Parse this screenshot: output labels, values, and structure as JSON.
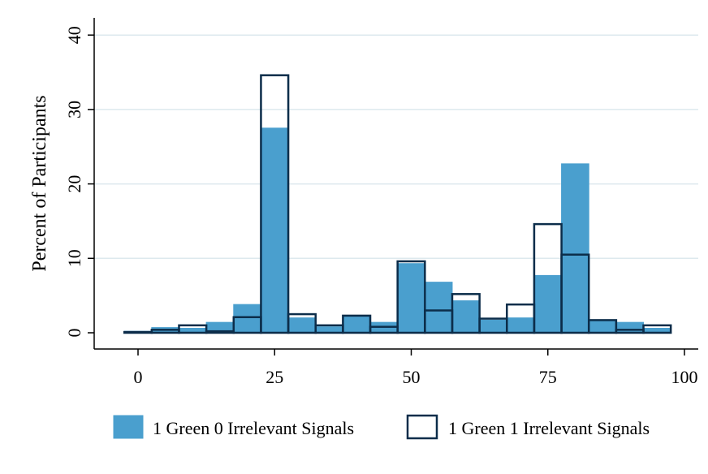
{
  "chart_data": {
    "type": "bar",
    "ylabel": "Percent of Participants",
    "xlabel": "",
    "title": "",
    "xlim": [
      -8,
      102
    ],
    "ylim": [
      0,
      40
    ],
    "x_ticks": [
      "0",
      "25",
      "50",
      "75",
      "100"
    ],
    "y_ticks": [
      "0",
      "10",
      "20",
      "30",
      "40"
    ],
    "grid": true,
    "legend_position": "bottom",
    "bin_width": 5,
    "colors": {
      "filled": "#4a9fce",
      "outline": "#0c2d4a",
      "grid": "#dde9ee"
    },
    "series": [
      {
        "name": "1 Green 0 Irrelevant Signals",
        "style": "filled",
        "bins": [
          {
            "x": 0,
            "value": 0.2
          },
          {
            "x": 5,
            "value": 0.7
          },
          {
            "x": 10,
            "value": 0.6
          },
          {
            "x": 15,
            "value": 1.4
          },
          {
            "x": 20,
            "value": 3.8
          },
          {
            "x": 25,
            "value": 27.5
          },
          {
            "x": 30,
            "value": 2.0
          },
          {
            "x": 35,
            "value": 0.8
          },
          {
            "x": 40,
            "value": 2.2
          },
          {
            "x": 45,
            "value": 1.4
          },
          {
            "x": 50,
            "value": 9.3
          },
          {
            "x": 55,
            "value": 6.8
          },
          {
            "x": 60,
            "value": 4.3
          },
          {
            "x": 65,
            "value": 1.7
          },
          {
            "x": 70,
            "value": 2.0
          },
          {
            "x": 75,
            "value": 7.7
          },
          {
            "x": 80,
            "value": 22.7
          },
          {
            "x": 85,
            "value": 1.6
          },
          {
            "x": 90,
            "value": 1.4
          },
          {
            "x": 95,
            "value": 0.6
          }
        ]
      },
      {
        "name": "1 Green 1 Irrelevant Signals",
        "style": "outline",
        "bins": [
          {
            "x": 0,
            "value": 0.1
          },
          {
            "x": 5,
            "value": 0.4
          },
          {
            "x": 10,
            "value": 1.0
          },
          {
            "x": 15,
            "value": 0.2
          },
          {
            "x": 20,
            "value": 2.1
          },
          {
            "x": 25,
            "value": 34.6
          },
          {
            "x": 30,
            "value": 2.5
          },
          {
            "x": 35,
            "value": 1.0
          },
          {
            "x": 40,
            "value": 2.3
          },
          {
            "x": 45,
            "value": 0.8
          },
          {
            "x": 50,
            "value": 9.6
          },
          {
            "x": 55,
            "value": 3.0
          },
          {
            "x": 60,
            "value": 5.2
          },
          {
            "x": 65,
            "value": 1.9
          },
          {
            "x": 70,
            "value": 3.8
          },
          {
            "x": 75,
            "value": 14.6
          },
          {
            "x": 80,
            "value": 10.5
          },
          {
            "x": 85,
            "value": 1.7
          },
          {
            "x": 90,
            "value": 0.4
          },
          {
            "x": 95,
            "value": 1.0
          }
        ]
      }
    ]
  }
}
